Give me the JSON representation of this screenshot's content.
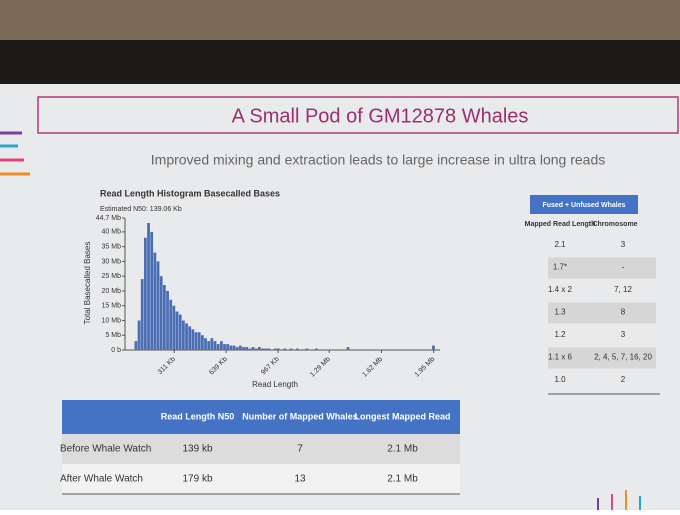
{
  "slide": {
    "title": "A Small Pod of GM12878 Whales",
    "subtitle": "Improved mixing and extraction leads to large increase in ultra long reads"
  },
  "chart_data": {
    "type": "histogram",
    "title": "Read Length Histogram Basecalled Bases",
    "annotation": "Estimated N50: 139.06 Kb",
    "xlabel": "Read Length",
    "ylabel": "Total Basecalled Bases",
    "color": "#4a6db3",
    "bins": [
      60,
      80,
      100,
      120,
      140,
      160,
      180,
      200,
      220,
      240,
      260,
      280,
      300,
      320,
      340,
      360,
      380,
      400,
      420,
      440,
      460,
      480,
      500,
      520,
      540,
      560,
      580,
      600,
      620,
      640,
      660,
      680,
      700,
      720,
      740,
      760,
      780,
      800,
      820,
      840,
      860,
      880,
      900,
      920,
      940,
      960,
      980,
      1000,
      1020,
      1040,
      1060,
      1080,
      1100,
      1120,
      1140,
      1160,
      1180,
      1200,
      1220,
      1240,
      1260,
      1280,
      1300,
      1320,
      1340,
      1360,
      1380,
      1400,
      1420,
      1440,
      1460,
      1480,
      1500,
      1520,
      1540,
      1560,
      1580,
      1600,
      1620,
      1640,
      1660,
      1680,
      1700,
      1720,
      1740,
      1760,
      1780,
      1800,
      1820,
      1840,
      1860,
      1880,
      1900,
      1920,
      1940,
      1960,
      1980
    ],
    "values": [
      3,
      10,
      24,
      38,
      43,
      40,
      33,
      30,
      25,
      22,
      20,
      17,
      15,
      13,
      12,
      10,
      9,
      8,
      7,
      6,
      6,
      5,
      4,
      3,
      4,
      3,
      2,
      3,
      2,
      2,
      1.5,
      1.5,
      1,
      1.5,
      1,
      1,
      0.5,
      1,
      0.5,
      1,
      0.5,
      0.5,
      0.5,
      0,
      0.5,
      0.5,
      0,
      0.5,
      0,
      0.5,
      0,
      0.5,
      0,
      0,
      0.5,
      0,
      0,
      0.5,
      0,
      0,
      0,
      0,
      0,
      0,
      0,
      0,
      0,
      1,
      0,
      0,
      0,
      0,
      0,
      0,
      0,
      0,
      0,
      0,
      0,
      0,
      0,
      0,
      0,
      0,
      0,
      0,
      0,
      0,
      0,
      0,
      0,
      0,
      0,
      0,
      1.5,
      0
    ],
    "xlim": [
      0,
      1990
    ],
    "ylim": [
      0,
      44.7
    ],
    "xticks": [
      {
        "value": 311,
        "label": "311 Kb"
      },
      {
        "value": 639,
        "label": "639 Kb"
      },
      {
        "value": 967,
        "label": "967 Kb"
      },
      {
        "value": 1290,
        "label": "1.29 Mb"
      },
      {
        "value": 1620,
        "label": "1.62 Mb"
      },
      {
        "value": 1950,
        "label": "1.95 Mb"
      }
    ],
    "yticks": [
      {
        "value": 0,
        "label": "0 b"
      },
      {
        "value": 5,
        "label": "5 Mb"
      },
      {
        "value": 10,
        "label": "10 Mb"
      },
      {
        "value": 15,
        "label": "15 Mb"
      },
      {
        "value": 20,
        "label": "20 Mb"
      },
      {
        "value": 25,
        "label": "25 Mb"
      },
      {
        "value": 30,
        "label": "30 Mb"
      },
      {
        "value": 35,
        "label": "35 Mb"
      },
      {
        "value": 40,
        "label": "40 Mb"
      },
      {
        "value": 44.7,
        "label": "44.7 Mb"
      }
    ]
  },
  "summary_table": {
    "headers": [
      "Read Length N50",
      "Number of Mapped Whales",
      "Longest Mapped Read"
    ],
    "rows": [
      [
        "Before Whale Watch",
        "139 kb",
        "7",
        "2.1 Mb"
      ],
      [
        "After Whale Watch",
        "179 kb",
        "13",
        "2.1 Mb"
      ]
    ]
  },
  "whales_table": {
    "title": "Fused + Unfused Whales",
    "headers": [
      "Mapped Read Length",
      "Chromosome"
    ],
    "rows": [
      [
        "2.1",
        "3"
      ],
      [
        "1.7*",
        "-"
      ],
      [
        "1.4 x 2",
        "7, 12"
      ],
      [
        "1.3",
        "8"
      ],
      [
        "1.2",
        "3"
      ],
      [
        "1.1 x 6",
        "2, 4, 5, 7, 16, 20"
      ],
      [
        "1.0",
        "2"
      ]
    ]
  }
}
